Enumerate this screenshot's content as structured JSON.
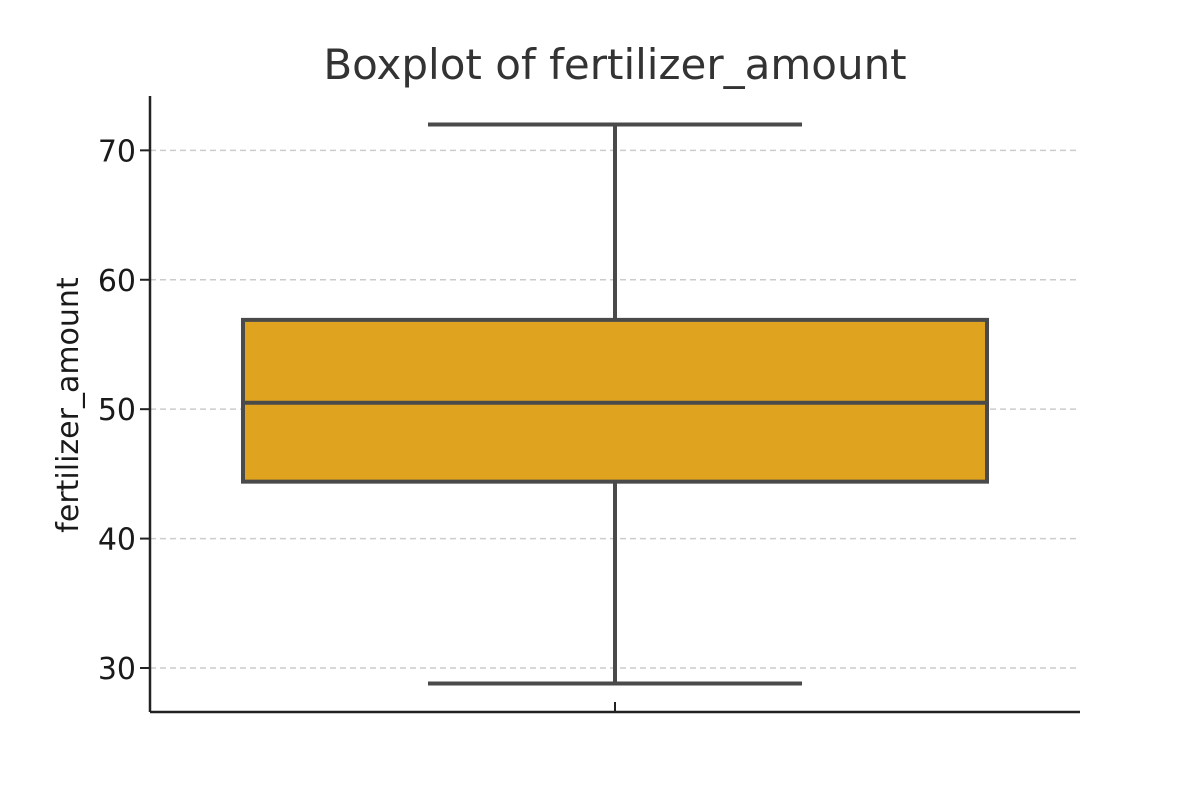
{
  "chart_data": {
    "type": "box",
    "title": "Boxplot of fertilizer_amount",
    "ylabel": "fertilizer_amount",
    "xlabel": "",
    "ylim": [
      26.6,
      74.2
    ],
    "yticks": [
      30,
      40,
      50,
      60,
      70
    ],
    "grid": "y-dashed",
    "box_color": "#E0A320",
    "line_color": "#4A4A4A",
    "series": [
      {
        "whisker_low": 28.8,
        "q1": 44.4,
        "median": 50.5,
        "q3": 56.9,
        "whisker_high": 72.0
      }
    ]
  }
}
